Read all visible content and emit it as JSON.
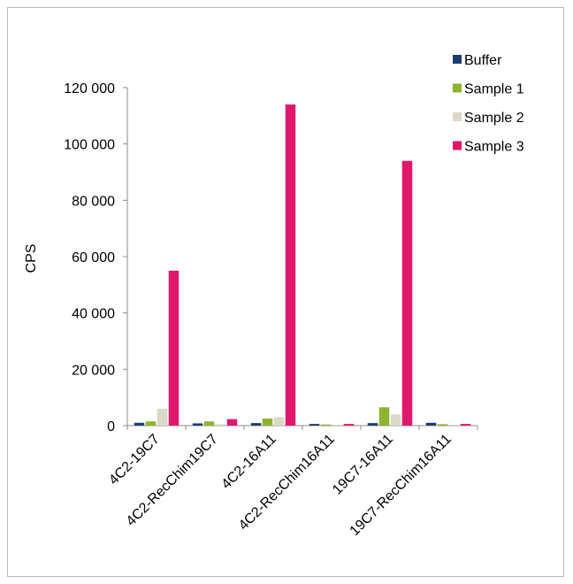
{
  "chart_data": {
    "type": "bar",
    "ylabel": "CPS",
    "xlabel": "",
    "ylim": [
      0,
      120000
    ],
    "yticks": [
      0,
      20000,
      40000,
      60000,
      80000,
      100000,
      120000
    ],
    "ytick_labels": [
      "0",
      "20 000",
      "40 000",
      "60 000",
      "80 000",
      "100 000",
      "120 000"
    ],
    "categories": [
      "4C2-19C7",
      "4C2-RecChim19C7",
      "4C2-16A11",
      "4C2-RecChim16A11",
      "19C7-16A11",
      "19C7-RecChim16A11"
    ],
    "series": [
      {
        "name": "Buffer",
        "color": "#1f3c6e",
        "values": [
          1000,
          800,
          900,
          600,
          900,
          1000
        ]
      },
      {
        "name": "Sample 1",
        "color": "#8db32f",
        "values": [
          1500,
          1500,
          2500,
          400,
          6500,
          500
        ]
      },
      {
        "name": "Sample 2",
        "color": "#dcd8c6",
        "values": [
          6000,
          500,
          3000,
          300,
          4000,
          300
        ]
      },
      {
        "name": "Sample 3",
        "color": "#e0186c",
        "values": [
          55000,
          2300,
          114000,
          600,
          94000,
          600
        ]
      }
    ],
    "legend_position": "top-right",
    "grid": false
  }
}
